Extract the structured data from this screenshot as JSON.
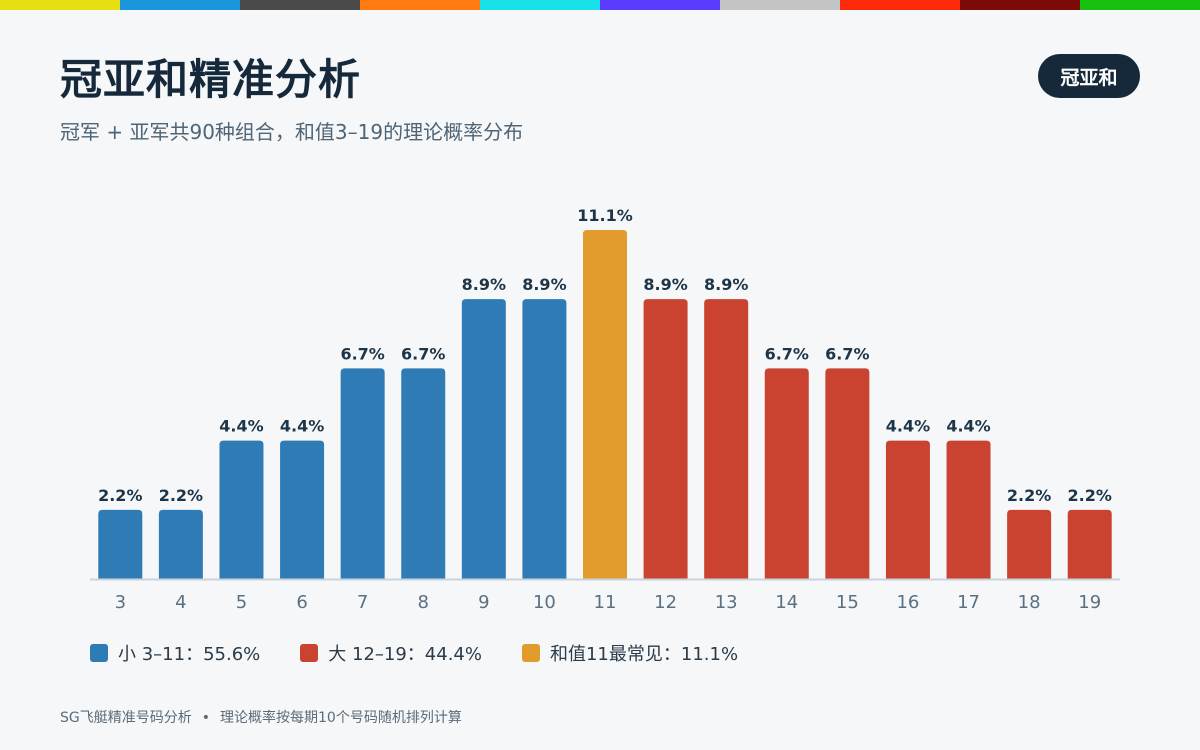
{
  "header": {
    "title": "冠亚和精准分析",
    "subtitle": "冠军 + 亚军共90种组合，和值3–19的理论概率分布",
    "badge": "冠亚和"
  },
  "topbar_colors": [
    "#e6df12",
    "#1a96dc",
    "#4a4a4a",
    "#ff7a10",
    "#1ae0e8",
    "#5a3cff",
    "#c4c4c4",
    "#ff2a0c",
    "#7c0a06",
    "#18c010"
  ],
  "colors": {
    "small": "#2f7bb6",
    "big": "#c94330",
    "peak": "#e29c2e",
    "axis": "#c9d3db",
    "label": "#1e3447",
    "tick": "#5b7080"
  },
  "chart_data": {
    "type": "bar",
    "categories": [
      "3",
      "4",
      "5",
      "6",
      "7",
      "8",
      "9",
      "10",
      "11",
      "12",
      "13",
      "14",
      "15",
      "16",
      "17",
      "18",
      "19"
    ],
    "values": [
      2.2,
      2.2,
      4.4,
      4.4,
      6.7,
      6.7,
      8.9,
      8.9,
      11.1,
      8.9,
      8.9,
      6.7,
      6.7,
      4.4,
      4.4,
      2.2,
      2.2
    ],
    "value_labels": [
      "2.2%",
      "2.2%",
      "4.4%",
      "4.4%",
      "6.7%",
      "6.7%",
      "8.9%",
      "8.9%",
      "11.1%",
      "8.9%",
      "8.9%",
      "6.7%",
      "6.7%",
      "4.4%",
      "4.4%",
      "2.2%",
      "2.2%"
    ],
    "groups": [
      "small",
      "small",
      "small",
      "small",
      "small",
      "small",
      "small",
      "small",
      "peak",
      "big",
      "big",
      "big",
      "big",
      "big",
      "big",
      "big",
      "big"
    ],
    "title": "",
    "xlabel": "",
    "ylabel": "",
    "ylim": [
      0,
      12.1
    ],
    "grid": false
  },
  "legend": [
    {
      "key": "small",
      "label": "小 3–11：55.6%"
    },
    {
      "key": "big",
      "label": "大 12–19：44.4%"
    },
    {
      "key": "peak",
      "label": "和值11最常见：11.1%"
    }
  ],
  "footer": {
    "left": "SG飞艇精准号码分析",
    "separator": "•",
    "right": "理论概率按每期10个号码随机排列计算"
  }
}
